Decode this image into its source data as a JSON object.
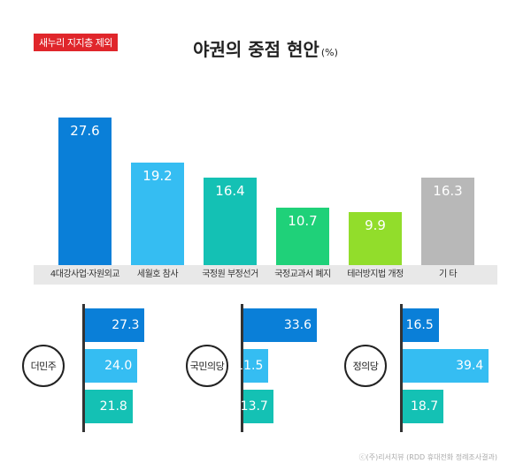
{
  "badge": "새누리 지지층 제외",
  "title": "야권의 중점 현안",
  "title_unit": "(%)",
  "colors": {
    "dark_blue": "#0a7fd8",
    "sky_blue": "#35bdf2",
    "teal": "#14c1b4",
    "green": "#1fd179",
    "lime": "#92dd2b",
    "gray": "#b8b8b8"
  },
  "chart_data": [
    {
      "type": "bar",
      "categories": [
        "4대강사업·자원외교",
        "세월호 참사",
        "국정원 부정선거",
        "국정교과서 폐지",
        "테러방지법 개정",
        "기    타"
      ],
      "values": [
        27.6,
        19.2,
        16.4,
        10.7,
        9.9,
        16.3
      ],
      "value_labels": [
        "27.6",
        "19.2",
        "16.4",
        "10.7",
        "9.9",
        "16.3"
      ],
      "colors": [
        "#0a7fd8",
        "#35bdf2",
        "#14c1b4",
        "#1fd179",
        "#92dd2b",
        "#b8b8b8"
      ],
      "ylim": [
        0,
        27.6
      ]
    },
    {
      "type": "bar",
      "orientation": "horizontal",
      "party": "더민주",
      "values": [
        27.3,
        24.0,
        21.8
      ],
      "value_labels": [
        "27.3",
        "24.0",
        "21.8"
      ],
      "colors": [
        "#0a7fd8",
        "#35bdf2",
        "#14c1b4"
      ]
    },
    {
      "type": "bar",
      "orientation": "horizontal",
      "party": "국민의당",
      "values": [
        33.6,
        11.5,
        13.7
      ],
      "value_labels": [
        "33.6",
        "11.5",
        "13.7"
      ],
      "colors": [
        "#0a7fd8",
        "#35bdf2",
        "#14c1b4"
      ]
    },
    {
      "type": "bar",
      "orientation": "horizontal",
      "party": "정의당",
      "values": [
        16.5,
        39.4,
        18.7
      ],
      "value_labels": [
        "16.5",
        "39.4",
        "18.7"
      ],
      "colors": [
        "#0a7fd8",
        "#35bdf2",
        "#14c1b4"
      ]
    }
  ],
  "source": "ⓒ(주)리서치뷰 (RDD 휴대전화 정례조사결과)"
}
